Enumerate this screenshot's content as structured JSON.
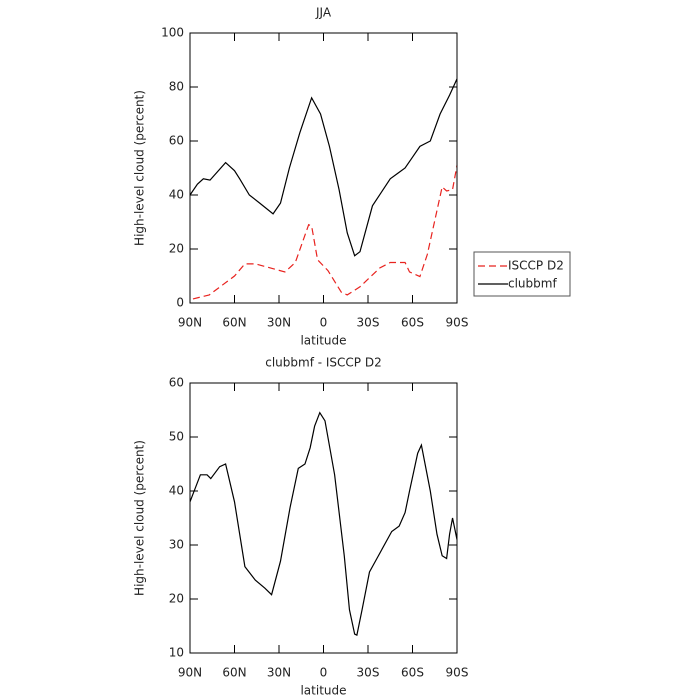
{
  "chart_data": [
    {
      "type": "line",
      "title": "JJA",
      "xlabel": "latitude",
      "ylabel": "High-level cloud (percent)",
      "xlim": [
        90,
        -90
      ],
      "xticks": [
        {
          "value": 90,
          "label": "90N"
        },
        {
          "value": 60,
          "label": "60N"
        },
        {
          "value": 30,
          "label": "30N"
        },
        0,
        {
          "value": -30,
          "label": "30S"
        },
        {
          "value": -60,
          "label": "60S"
        },
        {
          "value": -90,
          "label": "90S"
        }
      ],
      "ylim": [
        0,
        100
      ],
      "yticks": [
        0,
        20,
        40,
        60,
        80,
        100
      ],
      "legend": "right",
      "series": [
        {
          "name": "ISCCP D2",
          "color": "#e8231f",
          "linestyle": "dashed",
          "x": [
            88,
            77,
            60,
            53,
            46,
            26,
            19,
            10,
            8,
            4,
            -3,
            -12,
            -16,
            -24.6,
            -38,
            -45,
            -55,
            -58,
            -65,
            -70,
            -80,
            -83,
            -87,
            -90
          ],
          "values": [
            1.5,
            3,
            10,
            14.5,
            14.5,
            11.5,
            15,
            29,
            28.5,
            16,
            12,
            4,
            3,
            6,
            13,
            15,
            15,
            11.5,
            9.8,
            18,
            43,
            41.5,
            42,
            51
          ]
        },
        {
          "name": "clubbmf",
          "color": "#000000",
          "linestyle": "solid",
          "x": [
            90,
            85,
            81,
            76.5,
            66,
            60,
            56.5,
            50,
            43,
            34,
            29,
            23,
            16,
            8,
            2,
            -4,
            -10.5,
            -16,
            -21,
            -24.6,
            -33,
            -45,
            -50,
            -55,
            -60,
            -65,
            -72,
            -78.6,
            -85,
            -90
          ],
          "values": [
            40,
            44,
            46,
            45.5,
            52,
            49,
            46,
            40,
            37,
            33,
            37,
            50,
            63,
            76,
            70,
            58,
            42,
            26,
            17.5,
            19,
            36,
            46,
            48,
            50,
            54,
            58,
            60,
            70,
            77,
            83
          ]
        }
      ]
    },
    {
      "type": "line",
      "title": "clubbmf - ISCCP D2",
      "xlabel": "latitude",
      "ylabel": "High-level cloud (percent)",
      "xlim": [
        90,
        -90
      ],
      "xticks": [
        {
          "value": 90,
          "label": "90N"
        },
        {
          "value": 60,
          "label": "60N"
        },
        {
          "value": 30,
          "label": "30N"
        },
        0,
        {
          "value": -30,
          "label": "30S"
        },
        {
          "value": -60,
          "label": "60S"
        },
        {
          "value": -90,
          "label": "90S"
        }
      ],
      "ylim": [
        10,
        60
      ],
      "yticks": [
        10,
        20,
        30,
        40,
        50,
        60
      ],
      "series": [
        {
          "color": "#000000",
          "linestyle": "solid",
          "x": [
            90,
            83,
            78.5,
            76,
            70,
            66,
            60,
            53,
            46,
            39.5,
            35,
            29,
            22.5,
            17,
            12.5,
            9,
            6,
            2.5,
            -1,
            -7.5,
            -14,
            -17.5,
            -21,
            -22.5,
            -26,
            -31,
            -36,
            -46,
            -51,
            -55,
            -58,
            -63.5,
            -66,
            -72,
            -76.5,
            -80,
            -83,
            -85,
            -87,
            -90
          ],
          "values": [
            38,
            43,
            43,
            42.3,
            44.5,
            45,
            38,
            26,
            23.5,
            22,
            20.8,
            27,
            37,
            44.2,
            45,
            48,
            52,
            54.5,
            53,
            43,
            28,
            18,
            13.5,
            13.3,
            18,
            25,
            27.5,
            32.5,
            33.5,
            36,
            40,
            47,
            48.5,
            40,
            32,
            28,
            27.5,
            32,
            35,
            31
          ]
        }
      ]
    }
  ]
}
